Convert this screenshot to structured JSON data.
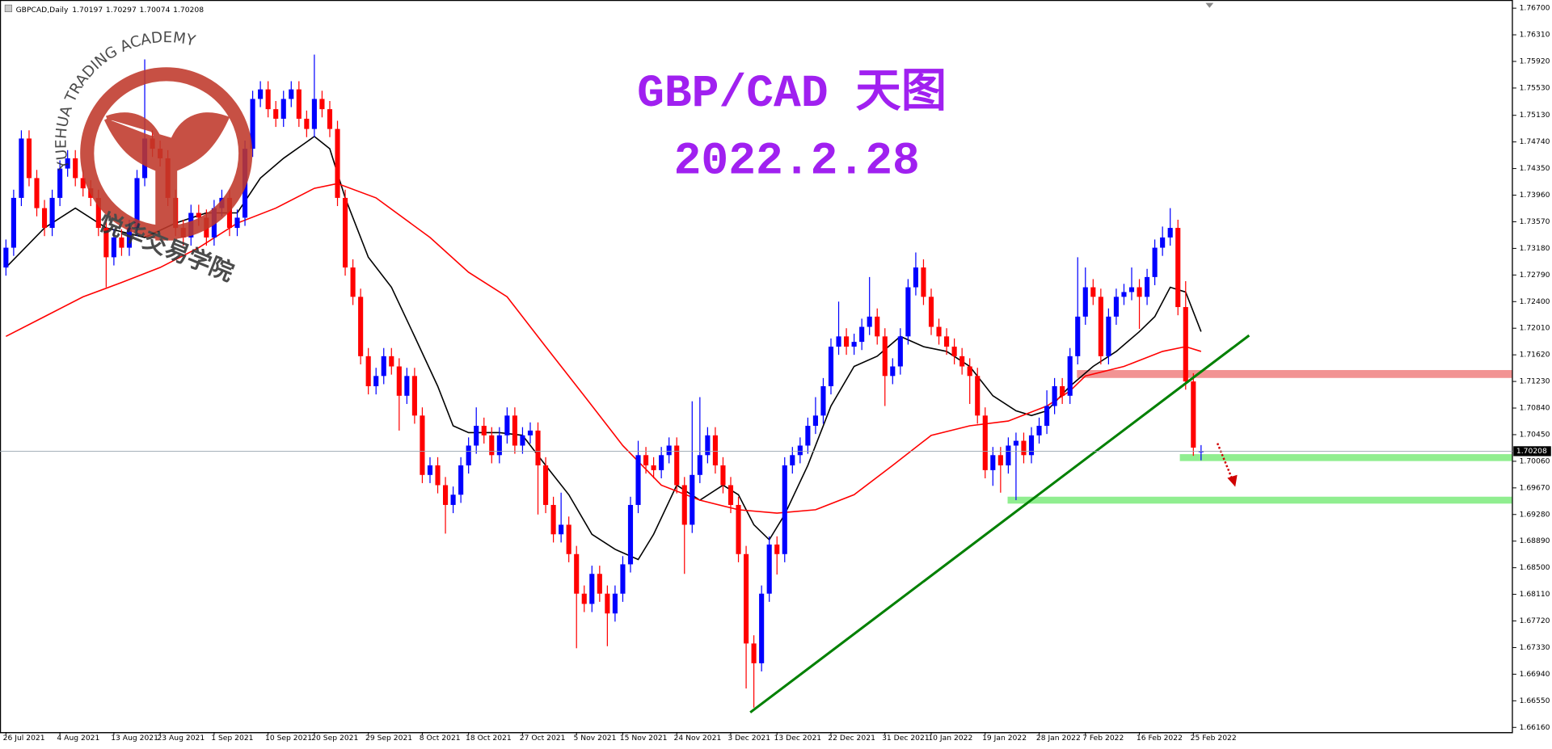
{
  "chart_data": {
    "type": "candlestick",
    "symbol": "GBPCAD,Daily",
    "title": "GBP/CAD 天图",
    "subtitle": "2022.2.28",
    "watermark": {
      "text": "YUEHUA TRADING ACADEMY",
      "chinese": "悦华交易学院"
    },
    "up_color": "#0000ff",
    "down_color": "#ff0000",
    "categories": [
      "26 Jul 2021",
      null,
      null,
      null,
      null,
      null,
      null,
      "4 Aug 2021",
      null,
      null,
      null,
      null,
      null,
      null,
      "13 Aug 2021",
      null,
      null,
      null,
      null,
      null,
      "23 Aug 2021",
      null,
      null,
      null,
      null,
      null,
      null,
      "1 Sep 2021",
      null,
      null,
      null,
      null,
      null,
      null,
      "10 Sep 2021",
      null,
      null,
      null,
      null,
      null,
      "20 Sep 2021",
      null,
      null,
      null,
      null,
      null,
      null,
      "29 Sep 2021",
      null,
      null,
      null,
      null,
      null,
      null,
      "8 Oct 2021",
      null,
      null,
      null,
      null,
      null,
      "18 Oct 2021",
      null,
      null,
      null,
      null,
      null,
      null,
      "27 Oct 2021",
      null,
      null,
      null,
      null,
      null,
      null,
      "5 Nov 2021",
      null,
      null,
      null,
      null,
      null,
      "15 Nov 2021",
      null,
      null,
      null,
      null,
      null,
      null,
      "24 Nov 2021",
      null,
      null,
      null,
      null,
      null,
      null,
      "3 Dec 2021",
      null,
      null,
      null,
      null,
      null,
      "13 Dec 2021",
      null,
      null,
      null,
      null,
      null,
      null,
      "22 Dec 2021",
      null,
      null,
      null,
      null,
      null,
      null,
      "31 Dec 2021",
      null,
      null,
      null,
      null,
      null,
      "10 Jan 2022",
      null,
      null,
      null,
      null,
      null,
      null,
      "19 Jan 2022",
      null,
      null,
      null,
      null,
      null,
      null,
      "28 Jan 2022",
      null,
      null,
      null,
      null,
      null,
      "7 Feb 2022",
      null,
      null,
      null,
      null,
      null,
      null,
      "16 Feb 2022",
      null,
      null,
      null,
      null,
      null,
      null,
      "25 Feb 2022",
      null
    ],
    "open": [
      1.729,
      1.7319,
      1.7392,
      1.7479,
      1.7421,
      1.7377,
      1.7348,
      1.7392,
      1.7435,
      1.745,
      1.7421,
      1.7406,
      1.7392,
      1.7348,
      1.7305,
      1.7334,
      1.7319,
      1.7348,
      1.7421,
      1.7479,
      1.7464,
      1.745,
      1.7392,
      1.7348,
      1.7334,
      1.737,
      1.7363,
      1.7334,
      1.7377,
      1.7392,
      1.7348,
      1.7363,
      1.7464,
      1.7537,
      1.7551,
      1.7522,
      1.7508,
      1.7537,
      1.7551,
      1.7508,
      1.7493,
      1.7537,
      1.7522,
      1.7493,
      1.7392,
      1.729,
      1.7247,
      1.716,
      1.7116,
      1.7131,
      1.716,
      1.7145,
      1.7102,
      1.7131,
      1.7073,
      1.6986,
      1.7,
      1.6971,
      1.6942,
      1.6957,
      1.7,
      1.7029,
      1.7058,
      1.7044,
      1.7015,
      1.7044,
      1.7073,
      1.7029,
      1.7044,
      1.7051,
      1.7,
      1.6942,
      1.6899,
      1.6913,
      1.687,
      1.6812,
      1.6797,
      1.6841,
      1.6812,
      1.6783,
      1.6812,
      1.6855,
      1.6942,
      1.7015,
      1.7,
      1.6993,
      1.7015,
      1.7029,
      1.6971,
      1.6913,
      1.6986,
      1.7015,
      1.7044,
      1.7,
      1.6971,
      1.6942,
      1.687,
      1.6739,
      1.671,
      1.6812,
      1.6884,
      1.687,
      1.7,
      1.7015,
      1.7029,
      1.7058,
      1.7073,
      1.7116,
      1.7174,
      1.7189,
      1.7174,
      1.7181,
      1.7203,
      1.7218,
      1.7189,
      1.7131,
      1.7145,
      1.7189,
      1.7261,
      1.729,
      1.7247,
      1.7203,
      1.7189,
      1.7174,
      1.716,
      1.7145,
      1.7131,
      1.7073,
      1.6993,
      1.7015,
      1.7,
      1.7029,
      1.7036,
      1.7015,
      1.7044,
      1.7058,
      1.7087,
      1.7116,
      1.7102,
      1.716,
      1.7218,
      1.7261,
      1.7247,
      1.716,
      1.7218,
      1.7247,
      1.7254,
      1.7261,
      1.7247,
      1.7276,
      1.7319,
      1.7334,
      1.7348,
      1.7232,
      1.7123,
      1.70197
    ],
    "high": [
      1.7331,
      1.7404,
      1.7491,
      1.7491,
      1.7433,
      1.7389,
      1.7404,
      1.7447,
      1.7462,
      1.7462,
      1.7433,
      1.7418,
      1.7404,
      1.736,
      1.7346,
      1.7346,
      1.736,
      1.7433,
      1.7595,
      1.7491,
      1.7476,
      1.7462,
      1.7404,
      1.736,
      1.7382,
      1.7382,
      1.7375,
      1.7389,
      1.7404,
      1.7404,
      1.7375,
      1.7476,
      1.7549,
      1.7563,
      1.7563,
      1.7534,
      1.7549,
      1.7563,
      1.7563,
      1.752,
      1.7602,
      1.7549,
      1.7534,
      1.7505,
      1.7404,
      1.7302,
      1.7259,
      1.7172,
      1.7143,
      1.7172,
      1.7172,
      1.7157,
      1.7143,
      1.7143,
      1.7085,
      1.7012,
      1.7012,
      1.6983,
      1.6969,
      1.7012,
      1.7041,
      1.7085,
      1.707,
      1.7056,
      1.7056,
      1.7085,
      1.7085,
      1.7056,
      1.7063,
      1.7063,
      1.7012,
      1.6954,
      1.696,
      1.6925,
      1.6882,
      1.6824,
      1.6853,
      1.6853,
      1.6824,
      1.6824,
      1.6867,
      1.6954,
      1.7036,
      1.7027,
      1.7012,
      1.7027,
      1.7041,
      1.7041,
      1.6983,
      1.7094,
      1.71,
      1.7056,
      1.7056,
      1.7012,
      1.6983,
      1.6954,
      1.6882,
      1.6751,
      1.6824,
      1.6896,
      1.6896,
      1.7012,
      1.7027,
      1.7041,
      1.707,
      1.71,
      1.7128,
      1.7186,
      1.724,
      1.7201,
      1.7193,
      1.7215,
      1.7276,
      1.723,
      1.7201,
      1.7157,
      1.7201,
      1.7273,
      1.7312,
      1.7302,
      1.7259,
      1.7215,
      1.7201,
      1.7186,
      1.7172,
      1.7157,
      1.7143,
      1.7085,
      1.7027,
      1.7027,
      1.7041,
      1.7048,
      1.7048,
      1.7056,
      1.707,
      1.711,
      1.7128,
      1.7128,
      1.7172,
      1.7305,
      1.729,
      1.7273,
      1.7259,
      1.723,
      1.7259,
      1.7266,
      1.729,
      1.7273,
      1.7288,
      1.7331,
      1.735,
      1.7377,
      1.736,
      1.727,
      1.7135,
      1.70297
    ],
    "low": [
      1.7278,
      1.7307,
      1.738,
      1.7409,
      1.7365,
      1.7336,
      1.7336,
      1.738,
      1.7423,
      1.7409,
      1.7394,
      1.738,
      1.7336,
      1.7261,
      1.7293,
      1.7307,
      1.7307,
      1.7336,
      1.7409,
      1.7452,
      1.7438,
      1.738,
      1.7336,
      1.7322,
      1.7322,
      1.7351,
      1.7322,
      1.7322,
      1.7365,
      1.7336,
      1.7336,
      1.7351,
      1.7452,
      1.7525,
      1.751,
      1.7496,
      1.7496,
      1.7525,
      1.7496,
      1.7481,
      1.7481,
      1.751,
      1.7481,
      1.738,
      1.7278,
      1.7235,
      1.7148,
      1.7104,
      1.7104,
      1.7119,
      1.7133,
      1.7051,
      1.709,
      1.7061,
      1.6974,
      1.6974,
      1.6959,
      1.69,
      1.693,
      1.6945,
      1.6988,
      1.7017,
      1.7032,
      1.7003,
      1.7003,
      1.7032,
      1.7017,
      1.7017,
      1.7032,
      1.6928,
      1.693,
      1.6887,
      1.6887,
      1.6858,
      1.6732,
      1.6785,
      1.6785,
      1.68,
      1.6735,
      1.6771,
      1.68,
      1.6843,
      1.693,
      1.6988,
      1.6981,
      1.6981,
      1.7003,
      1.6959,
      1.6841,
      1.6901,
      1.6974,
      1.7003,
      1.6988,
      1.6959,
      1.693,
      1.6858,
      1.6673,
      1.6645,
      1.6698,
      1.68,
      1.684,
      1.6858,
      1.6988,
      1.7003,
      1.7017,
      1.7046,
      1.7061,
      1.7104,
      1.7162,
      1.7162,
      1.7162,
      1.7169,
      1.7191,
      1.7177,
      1.7087,
      1.7119,
      1.7133,
      1.7177,
      1.7249,
      1.7235,
      1.7191,
      1.7177,
      1.7162,
      1.7148,
      1.7133,
      1.709,
      1.7061,
      1.6981,
      1.697,
      1.696,
      1.6988,
      1.6949,
      1.7003,
      1.7003,
      1.7032,
      1.7046,
      1.7075,
      1.709,
      1.709,
      1.7148,
      1.7206,
      1.7235,
      1.7148,
      1.7148,
      1.7206,
      1.7235,
      1.7242,
      1.72,
      1.7235,
      1.7264,
      1.7307,
      1.7322,
      1.722,
      1.7111,
      1.7014,
      1.70074
    ],
    "close": [
      1.7319,
      1.7392,
      1.7479,
      1.7421,
      1.7377,
      1.7348,
      1.7392,
      1.7435,
      1.745,
      1.7421,
      1.7406,
      1.7392,
      1.7348,
      1.7305,
      1.7334,
      1.7319,
      1.7348,
      1.7421,
      1.7479,
      1.7464,
      1.745,
      1.7392,
      1.7348,
      1.7334,
      1.737,
      1.7363,
      1.7334,
      1.7377,
      1.7392,
      1.7348,
      1.7363,
      1.7464,
      1.7537,
      1.7551,
      1.7522,
      1.7508,
      1.7537,
      1.7551,
      1.7508,
      1.7493,
      1.7537,
      1.7522,
      1.7493,
      1.7392,
      1.729,
      1.7247,
      1.716,
      1.7116,
      1.7131,
      1.716,
      1.7145,
      1.7102,
      1.7131,
      1.7073,
      1.6986,
      1.7,
      1.6971,
      1.6942,
      1.6957,
      1.7,
      1.7029,
      1.7058,
      1.7044,
      1.7015,
      1.7044,
      1.7073,
      1.7029,
      1.7044,
      1.7051,
      1.7,
      1.6942,
      1.6899,
      1.6913,
      1.687,
      1.6812,
      1.6797,
      1.6841,
      1.6812,
      1.6783,
      1.6812,
      1.6855,
      1.6942,
      1.7015,
      1.7,
      1.6993,
      1.7015,
      1.7029,
      1.6971,
      1.6913,
      1.6986,
      1.7015,
      1.7044,
      1.7,
      1.6971,
      1.6942,
      1.687,
      1.6739,
      1.671,
      1.6812,
      1.6884,
      1.687,
      1.7,
      1.7015,
      1.7029,
      1.7058,
      1.7073,
      1.7116,
      1.7174,
      1.7189,
      1.7174,
      1.7181,
      1.7203,
      1.7218,
      1.7189,
      1.7131,
      1.7145,
      1.7189,
      1.7261,
      1.729,
      1.7247,
      1.7203,
      1.7189,
      1.7174,
      1.716,
      1.7145,
      1.7131,
      1.7073,
      1.6993,
      1.7015,
      1.7,
      1.7029,
      1.7036,
      1.7015,
      1.7044,
      1.7058,
      1.7087,
      1.7116,
      1.7102,
      1.716,
      1.7218,
      1.7261,
      1.7247,
      1.716,
      1.7218,
      1.7247,
      1.7254,
      1.7261,
      1.7247,
      1.7276,
      1.7319,
      1.7334,
      1.7348,
      1.7232,
      1.7123,
      1.7026,
      1.70208
    ],
    "overlays": [
      {
        "color": "#000000",
        "x": [
          0,
          5,
          9,
          13,
          18,
          22,
          26,
          30,
          33,
          36,
          40,
          42,
          44,
          47,
          50,
          53,
          56,
          58,
          60,
          64,
          67,
          70,
          73,
          76,
          79,
          82,
          84,
          87,
          90,
          93,
          95,
          97,
          99,
          101,
          104,
          107,
          110,
          113,
          116,
          119,
          122,
          125,
          128,
          131,
          133,
          135,
          138,
          141,
          144,
          147,
          149,
          151,
          153,
          155
        ],
        "values": [
          1.729,
          1.7348,
          1.7377,
          1.7348,
          1.7334,
          1.7355,
          1.737,
          1.737,
          1.7421,
          1.745,
          1.7482,
          1.7464,
          1.7392,
          1.7305,
          1.7261,
          1.7189,
          1.7116,
          1.7058,
          1.7048,
          1.7048,
          1.7044,
          1.7,
          1.6957,
          1.6899,
          1.6877,
          1.6862,
          1.6899,
          1.6971,
          1.6949,
          1.6971,
          1.6957,
          1.6913,
          1.6891,
          1.6928,
          1.7,
          1.7087,
          1.7145,
          1.716,
          1.7189,
          1.7174,
          1.7167,
          1.7145,
          1.7102,
          1.708,
          1.7073,
          1.708,
          1.7116,
          1.7145,
          1.7167,
          1.7196,
          1.7218,
          1.7261,
          1.7254,
          1.7196
        ]
      },
      {
        "color": "#ff0000",
        "x": [
          0,
          5,
          10,
          15,
          20,
          25,
          30,
          35,
          40,
          43,
          48,
          55,
          60,
          65,
          70,
          75,
          80,
          85,
          90,
          95,
          100,
          105,
          110,
          115,
          120,
          125,
          130,
          135,
          138,
          140,
          145,
          150,
          153,
          155
        ],
        "values": [
          1.7189,
          1.7218,
          1.7247,
          1.7268,
          1.729,
          1.7319,
          1.7355,
          1.7377,
          1.7406,
          1.7413,
          1.7392,
          1.7334,
          1.7283,
          1.7247,
          1.7174,
          1.7102,
          1.7029,
          1.6971,
          1.6949,
          1.6935,
          1.693,
          1.6935,
          1.6957,
          1.7,
          1.7044,
          1.7058,
          1.7065,
          1.7087,
          1.7109,
          1.7131,
          1.7145,
          1.7167,
          1.7174,
          1.7167
        ]
      }
    ],
    "ylim": [
      1.6609,
      1.7682
    ],
    "yticks": [
      {
        "value": 1.767,
        "label": "1.76700"
      },
      {
        "value": 1.7631,
        "label": "1.76310"
      },
      {
        "value": 1.7592,
        "label": "1.75920"
      },
      {
        "value": 1.7553,
        "label": "1.75530"
      },
      {
        "value": 1.7513,
        "label": "1.75130"
      },
      {
        "value": 1.7474,
        "label": "1.74740"
      },
      {
        "value": 1.7435,
        "label": "1.74350"
      },
      {
        "value": 1.7396,
        "label": "1.73960"
      },
      {
        "value": 1.7357,
        "label": "1.73570"
      },
      {
        "value": 1.7318,
        "label": "1.73180"
      },
      {
        "value": 1.7279,
        "label": "1.72790"
      },
      {
        "value": 1.724,
        "label": "1.72400"
      },
      {
        "value": 1.7201,
        "label": "1.72010"
      },
      {
        "value": 1.7162,
        "label": "1.71620"
      },
      {
        "value": 1.7123,
        "label": "1.71230"
      },
      {
        "value": 1.7084,
        "label": "1.70840"
      },
      {
        "value": 1.7045,
        "label": "1.70450"
      },
      {
        "value": 1.7006,
        "label": "1.70060"
      },
      {
        "value": 1.6967,
        "label": "1.69670"
      },
      {
        "value": 1.6928,
        "label": "1.69280"
      },
      {
        "value": 1.6889,
        "label": "1.68890"
      },
      {
        "value": 1.685,
        "label": "1.68500"
      },
      {
        "value": 1.6811,
        "label": "1.68110"
      },
      {
        "value": 1.6772,
        "label": "1.67720"
      },
      {
        "value": 1.6733,
        "label": "1.67330"
      },
      {
        "value": 1.6694,
        "label": "1.66940"
      },
      {
        "value": 1.6655,
        "label": "1.66550"
      },
      {
        "value": 1.6616,
        "label": "1.66160"
      }
    ],
    "grid": false
  }
}
